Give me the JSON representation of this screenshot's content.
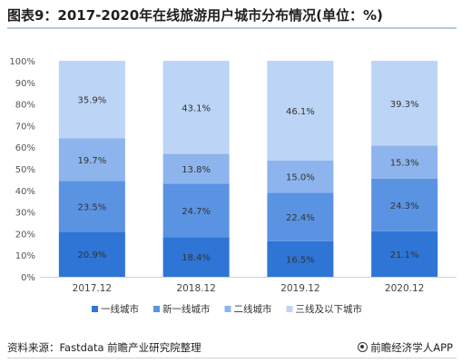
{
  "title": "图表9：2017-2020年在线旅游用户城市分布情况(单位：%)",
  "source": "资料来源：Fastdata 前瞻产业研究院整理",
  "brand": "前瞻经济学人APP",
  "chart_data": {
    "type": "bar",
    "stacked": true,
    "categories": [
      "2017.12",
      "2018.12",
      "2019.12",
      "2020.12"
    ],
    "y_ticks": [
      "0%",
      "10%",
      "20%",
      "30%",
      "40%",
      "50%",
      "60%",
      "70%",
      "80%",
      "90%",
      "100%"
    ],
    "ylim": [
      0,
      100
    ],
    "legend_position": "bottom",
    "series": [
      {
        "name": "一线城市",
        "color": "#2e75d6",
        "values": [
          20.9,
          18.4,
          16.5,
          21.1
        ],
        "labels": [
          "20.9%",
          "18.4%",
          "16.5%",
          "21.1%"
        ]
      },
      {
        "name": "新一线城市",
        "color": "#5b93e3",
        "values": [
          23.5,
          24.7,
          22.4,
          24.3
        ],
        "labels": [
          "23.5%",
          "24.7%",
          "22.4%",
          "24.3%"
        ]
      },
      {
        "name": "二线城市",
        "color": "#8db4ed",
        "values": [
          19.7,
          13.8,
          15.0,
          15.3
        ],
        "labels": [
          "19.7%",
          "13.8%",
          "15.0%",
          "15.3%"
        ]
      },
      {
        "name": "三线及以下城市",
        "color": "#bcd4f6",
        "values": [
          35.9,
          43.1,
          46.1,
          39.3
        ],
        "labels": [
          "35.9%",
          "43.1%",
          "46.1%",
          "39.3%"
        ]
      }
    ]
  }
}
